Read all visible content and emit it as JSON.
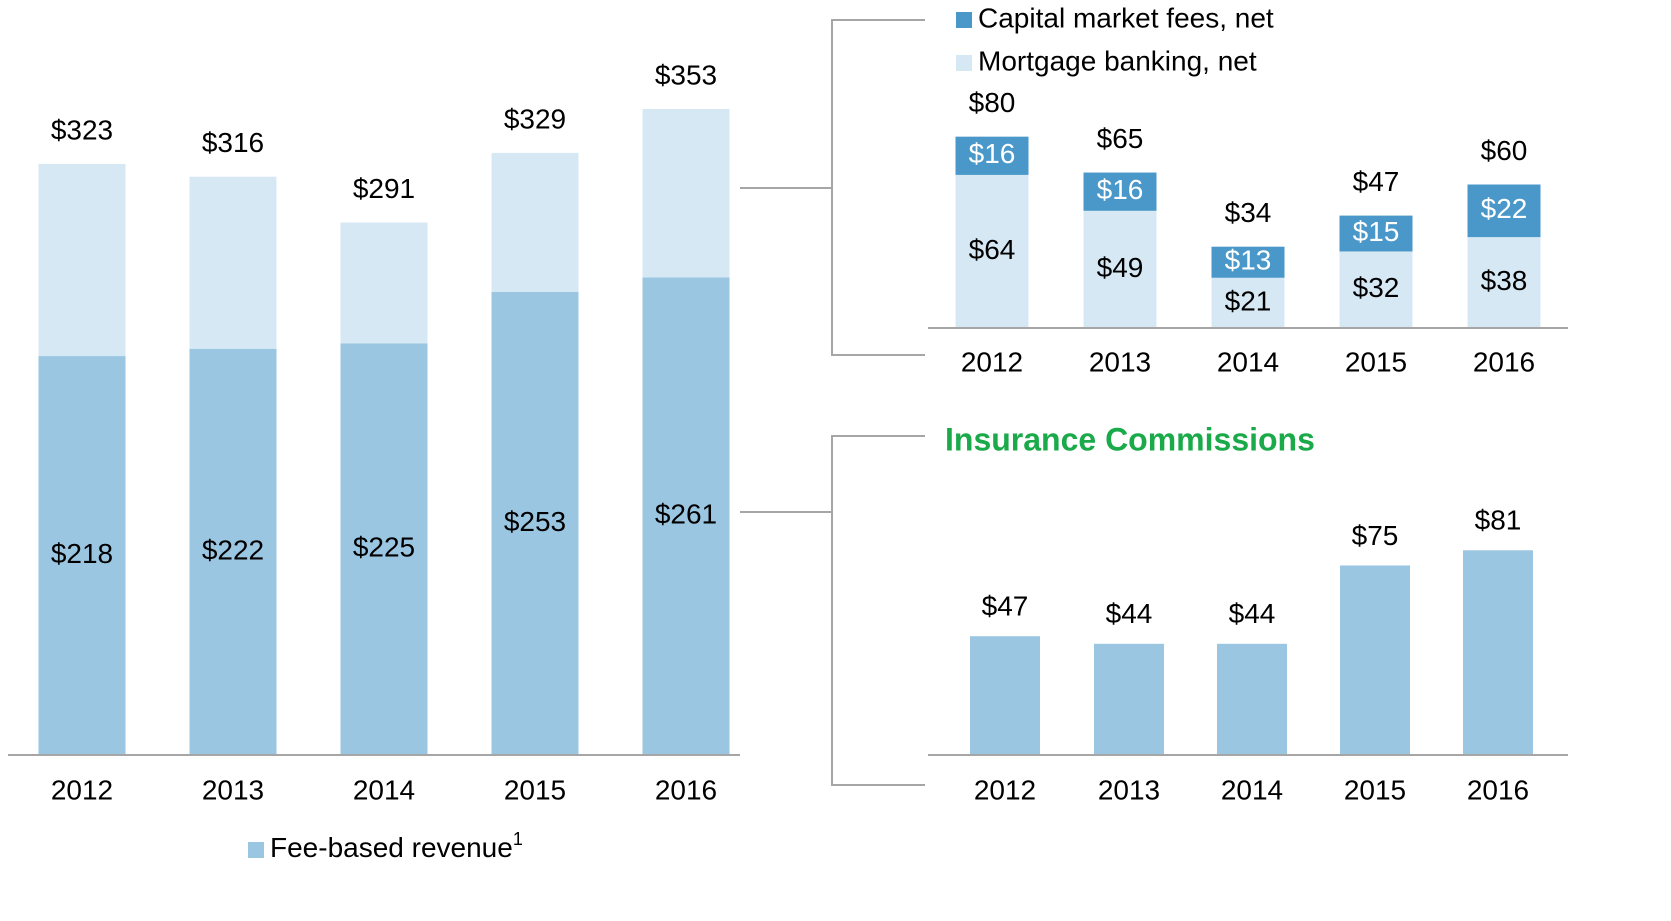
{
  "chart_data": [
    {
      "type": "stacked_bar",
      "categories": [
        "2012",
        "2013",
        "2014",
        "2015",
        "2016"
      ],
      "series": [
        {
          "name": "Fee-based revenue",
          "color": "#9ac6e2",
          "values": [
            218,
            222,
            225,
            253,
            261
          ],
          "value_labels": [
            "$218",
            "$222",
            "$225",
            "$253",
            "$261"
          ]
        },
        {
          "color": "#d6e8f4",
          "values": [
            105,
            94,
            66,
            76,
            92
          ]
        }
      ],
      "legend_note": "1",
      "totals": [
        323,
        316,
        291,
        329,
        353
      ],
      "total_labels": [
        "$323",
        "$316",
        "$291",
        "$329",
        "$353"
      ],
      "ylim": [
        0,
        400
      ]
    },
    {
      "type": "stacked_bar",
      "categories": [
        "2012",
        "2013",
        "2014",
        "2015",
        "2016"
      ],
      "series": [
        {
          "name": "Mortgage banking, net",
          "color": "#d6e8f4",
          "label_color": "#000000",
          "values": [
            64,
            49,
            21,
            32,
            38
          ],
          "value_labels": [
            "$64",
            "$49",
            "$21",
            "$32",
            "$38"
          ]
        },
        {
          "name": "Capital market fees, net",
          "color": "#4a98c9",
          "label_color": "#ffffff",
          "values": [
            16,
            16,
            13,
            15,
            22
          ],
          "value_labels": [
            "$16",
            "$16",
            "$13",
            "$15",
            "$22"
          ]
        }
      ],
      "totals": [
        80,
        65,
        34,
        47,
        60
      ],
      "total_labels": [
        "$80",
        "$65",
        "$34",
        "$47",
        "$60"
      ],
      "ylim": [
        0,
        120
      ]
    },
    {
      "type": "bar",
      "title": "Insurance Commissions",
      "categories": [
        "2012",
        "2013",
        "2014",
        "2015",
        "2016"
      ],
      "values": [
        47,
        44,
        44,
        75,
        81
      ],
      "value_labels": [
        "$47",
        "$44",
        "$44",
        "$75",
        "$81"
      ],
      "color": "#9ac6e2",
      "ylim": [
        0,
        110
      ]
    }
  ]
}
